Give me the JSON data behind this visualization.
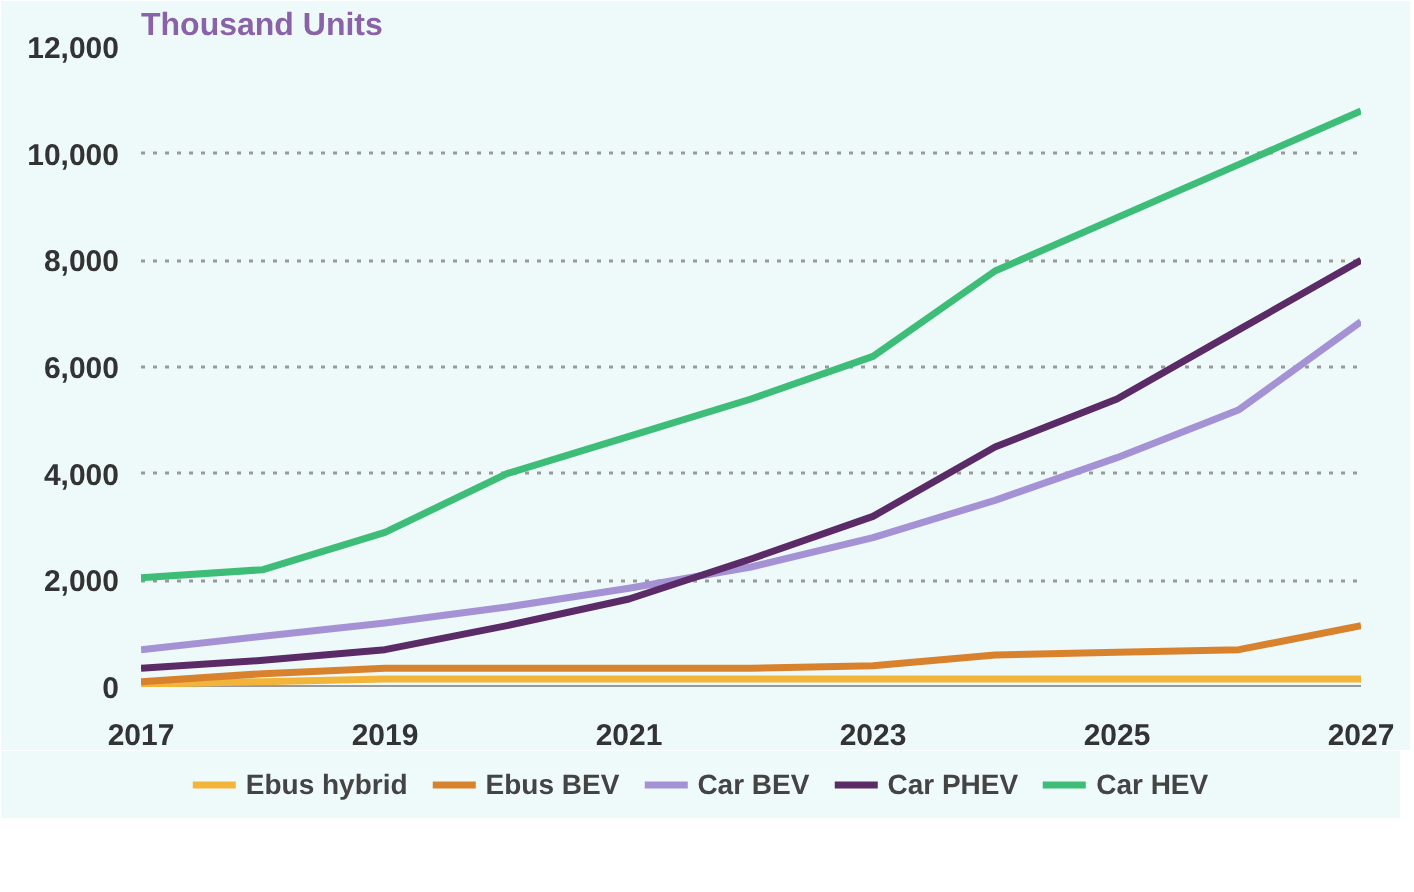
{
  "chart_data": {
    "type": "line",
    "ylabel": "Thousand Units",
    "x": [
      2017,
      2018,
      2019,
      2020,
      2021,
      2022,
      2023,
      2024,
      2025,
      2026,
      2027
    ],
    "series": [
      {
        "name": "Ebus hybrid",
        "color": "#f2b53a",
        "values": [
          50,
          100,
          150,
          150,
          150,
          150,
          150,
          150,
          150,
          150,
          150
        ]
      },
      {
        "name": "Ebus BEV",
        "color": "#d9822e",
        "values": [
          100,
          250,
          350,
          350,
          350,
          350,
          400,
          600,
          650,
          700,
          1150
        ]
      },
      {
        "name": "Car BEV",
        "color": "#a592d4",
        "values": [
          700,
          950,
          1200,
          1500,
          1850,
          2250,
          2800,
          3500,
          4300,
          5200,
          6850
        ]
      },
      {
        "name": "Car PHEV",
        "color": "#5b2b68",
        "values": [
          350,
          500,
          700,
          1150,
          1650,
          2400,
          3200,
          4500,
          5400,
          6700,
          8000
        ]
      },
      {
        "name": "Car HEV",
        "color": "#3dbd78",
        "values": [
          2050,
          2200,
          2900,
          4000,
          4700,
          5400,
          6200,
          7800,
          8800,
          9800,
          10800
        ]
      }
    ],
    "xlim": [
      2017,
      2027
    ],
    "xticks": [
      2017,
      2019,
      2021,
      2023,
      2025,
      2027
    ],
    "ylim": [
      0,
      12000
    ],
    "yticks": [
      {
        "value": 0,
        "label": "0"
      },
      {
        "value": 2000,
        "label": "2,000"
      },
      {
        "value": 4000,
        "label": "4,000"
      },
      {
        "value": 6000,
        "label": "6,000"
      },
      {
        "value": 8000,
        "label": "8,000"
      },
      {
        "value": 10000,
        "label": "10,000"
      },
      {
        "value": 12000,
        "label": "12,000"
      }
    ],
    "grid": "y",
    "legend": "bottom",
    "marker": "none",
    "line_style": "solid"
  }
}
